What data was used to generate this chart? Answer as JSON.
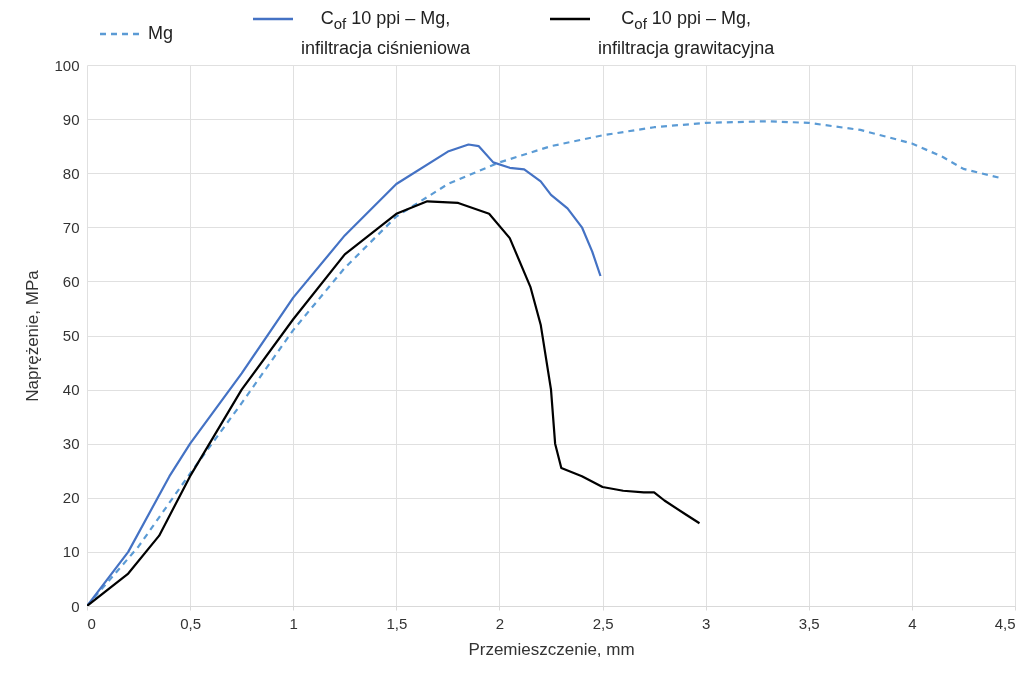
{
  "chart_data": {
    "type": "line",
    "xlabel": "Przemieszczenie, mm",
    "ylabel": "Naprężenie, MPa",
    "xlim": [
      0,
      4.5
    ],
    "ylim": [
      0,
      100
    ],
    "xticks": [
      0,
      {
        "value": 0.5,
        "label": "0,5"
      },
      1,
      {
        "value": 1.5,
        "label": "1,5"
      },
      2,
      {
        "value": 2.5,
        "label": "2,5"
      },
      3,
      {
        "value": 3.5,
        "label": "3,5"
      },
      4,
      {
        "value": 4.5,
        "label": "4,5"
      }
    ],
    "yticks": [
      0,
      10,
      20,
      30,
      40,
      50,
      60,
      70,
      80,
      90,
      100
    ],
    "grid": true,
    "legend": "top",
    "marker": "none",
    "series": [
      {
        "name": "Mg",
        "color": "#5b9bd5",
        "line_style": "dashed",
        "x": [
          0,
          0.25,
          0.5,
          0.75,
          1,
          1.25,
          1.5,
          1.75,
          2,
          2.25,
          2.5,
          2.75,
          3,
          3.3,
          3.5,
          3.75,
          4,
          4.15,
          4.25,
          4.42
        ],
        "values": [
          0,
          11,
          24.5,
          37.5,
          51,
          62.5,
          72,
          78,
          82,
          85,
          87,
          88.5,
          89.3,
          89.6,
          89.3,
          88,
          85.5,
          83,
          80.8,
          79.2
        ]
      },
      {
        "name": "C$_{of}$ 10 ppi – Mg, infiltracja ciśnieniowa",
        "color": "#4472c4",
        "line_style": "solid",
        "x": [
          0,
          0.2,
          0.4,
          0.5,
          0.75,
          1,
          1.25,
          1.5,
          1.75,
          1.85,
          1.9,
          1.97,
          2.05,
          2.12,
          2.2,
          2.25,
          2.33,
          2.4,
          2.45,
          2.49
        ],
        "values": [
          0,
          10,
          24,
          30,
          43,
          57,
          68.5,
          78,
          84,
          85.3,
          85,
          82,
          81,
          80.7,
          78.5,
          76,
          73.5,
          70,
          65.5,
          61
        ]
      },
      {
        "name": "C$_{of}$ 10 ppi – Mg, infiltracja grawitacyjna",
        "color": "#000000",
        "line_style": "solid",
        "x": [
          0,
          0.2,
          0.35,
          0.5,
          0.75,
          1,
          1.25,
          1.5,
          1.65,
          1.8,
          1.95,
          2.05,
          2.15,
          2.2,
          2.25,
          2.27,
          2.3,
          2.4,
          2.5,
          2.6,
          2.7,
          2.75,
          2.8,
          2.9,
          2.97
        ],
        "values": [
          0,
          6,
          13,
          24,
          40,
          53,
          65,
          72.5,
          74.8,
          74.5,
          72.5,
          68,
          59,
          52,
          40,
          30,
          25.5,
          24,
          22,
          21.3,
          21,
          21,
          19.5,
          17,
          15.3
        ]
      }
    ]
  }
}
